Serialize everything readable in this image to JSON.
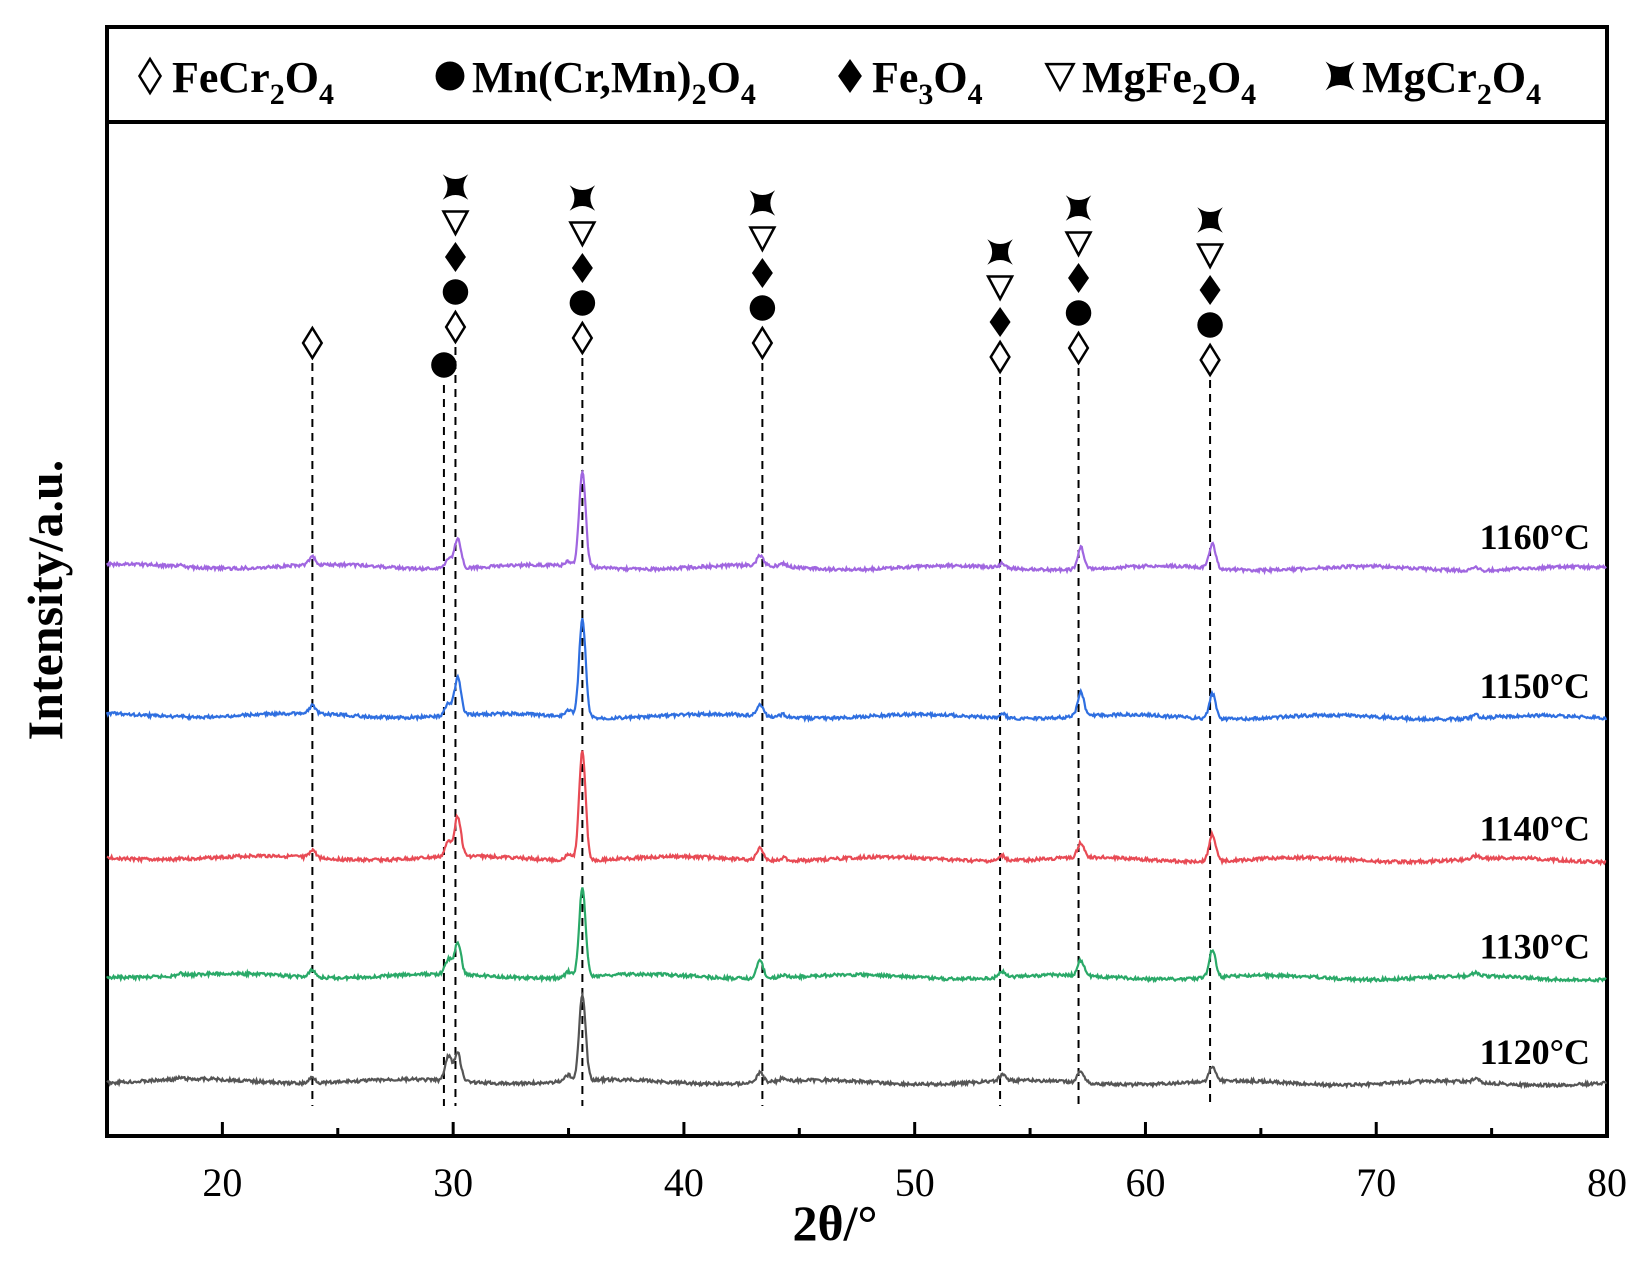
{
  "chart_data": {
    "type": "line",
    "xlabel": "2θ/°",
    "ylabel": "Intensity/a.u.",
    "xlim": [
      15,
      80
    ],
    "x_ticks": [
      20,
      30,
      40,
      50,
      60,
      70,
      80
    ],
    "legend_position": "top",
    "legend": [
      {
        "symbol": "open-diamond",
        "base": "FeCr",
        "sub1": "2",
        "mid": "O",
        "sub2": "4"
      },
      {
        "symbol": "filled-circle",
        "base": "Mn(Cr,Mn)",
        "sub1": "2",
        "mid": "O",
        "sub2": "4"
      },
      {
        "symbol": "filled-diamond",
        "base": "Fe",
        "sub1": "3",
        "mid": "O",
        "sub2": "4"
      },
      {
        "symbol": "open-triangle",
        "base": "MgFe",
        "sub1": "2",
        "mid": "O",
        "sub2": "4"
      },
      {
        "symbol": "bowtie",
        "base": "MgCr",
        "sub1": "2",
        "mid": "O",
        "sub2": "4"
      }
    ],
    "series": [
      {
        "name": "1160°C",
        "color": "#a066e0",
        "baseline": 0.24,
        "peaks": [
          [
            18.2,
            1.5
          ],
          [
            23.9,
            8
          ],
          [
            29.8,
            10
          ],
          [
            30.2,
            30
          ],
          [
            35.0,
            5
          ],
          [
            35.6,
            95
          ],
          [
            43.3,
            10
          ],
          [
            44.3,
            3
          ],
          [
            53.8,
            4
          ],
          [
            57.2,
            22
          ],
          [
            62.9,
            24
          ],
          [
            74.3,
            3
          ]
        ]
      },
      {
        "name": "1150°C",
        "color": "#2f6fe0",
        "baseline": 0.0,
        "peaks": [
          [
            18.2,
            1.5
          ],
          [
            23.9,
            8
          ],
          [
            29.8,
            12
          ],
          [
            30.2,
            38
          ],
          [
            35.0,
            7
          ],
          [
            35.6,
            98
          ],
          [
            43.3,
            12
          ],
          [
            44.3,
            3
          ],
          [
            53.8,
            5
          ],
          [
            57.2,
            24
          ],
          [
            62.9,
            25
          ],
          [
            74.3,
            3
          ]
        ]
      },
      {
        "name": "1140°C",
        "color": "#e84b55",
        "baseline": -0.23,
        "peaks": [
          [
            18.2,
            1.5
          ],
          [
            23.9,
            8
          ],
          [
            29.8,
            15
          ],
          [
            30.2,
            40
          ],
          [
            35.0,
            7
          ],
          [
            35.6,
            110
          ],
          [
            43.3,
            13
          ],
          [
            44.3,
            3
          ],
          [
            53.8,
            5
          ],
          [
            57.2,
            15
          ],
          [
            62.9,
            27
          ],
          [
            74.3,
            3
          ]
        ]
      },
      {
        "name": "1130°C",
        "color": "#2aa968",
        "baseline": -0.42,
        "peaks": [
          [
            18.2,
            2
          ],
          [
            23.9,
            7
          ],
          [
            29.8,
            15
          ],
          [
            30.2,
            32
          ],
          [
            35.0,
            6
          ],
          [
            35.6,
            88
          ],
          [
            43.3,
            18
          ],
          [
            44.3,
            3
          ],
          [
            53.8,
            6
          ],
          [
            57.2,
            15
          ],
          [
            62.9,
            28
          ],
          [
            74.3,
            3
          ]
        ]
      },
      {
        "name": "1120°C",
        "color": "#555555",
        "baseline": -0.59,
        "peaks": [
          [
            18.2,
            1.5
          ],
          [
            23.9,
            6
          ],
          [
            29.8,
            25
          ],
          [
            30.2,
            28
          ],
          [
            35.0,
            6
          ],
          [
            35.6,
            85
          ],
          [
            43.3,
            10
          ],
          [
            44.3,
            3
          ],
          [
            53.8,
            6
          ],
          [
            57.2,
            12
          ],
          [
            62.9,
            15
          ],
          [
            74.3,
            3
          ]
        ]
      }
    ],
    "peak_markers": [
      {
        "x": 23.9,
        "symbols": [
          "open-diamond"
        ]
      },
      {
        "x": 29.6,
        "symbols": [
          "filled-circle"
        ]
      },
      {
        "x": 30.1,
        "symbols": [
          "open-diamond",
          "filled-circle",
          "filled-diamond",
          "open-triangle",
          "bowtie"
        ]
      },
      {
        "x": 35.6,
        "symbols": [
          "open-diamond",
          "filled-circle",
          "filled-diamond",
          "open-triangle",
          "bowtie"
        ]
      },
      {
        "x": 43.4,
        "symbols": [
          "open-diamond",
          "filled-circle",
          "filled-diamond",
          "open-triangle",
          "bowtie"
        ]
      },
      {
        "x": 53.7,
        "symbols": [
          "open-diamond",
          "filled-diamond",
          "open-triangle",
          "bowtie"
        ]
      },
      {
        "x": 57.1,
        "symbols": [
          "open-diamond",
          "filled-circle",
          "filled-diamond",
          "open-triangle",
          "bowtie"
        ]
      },
      {
        "x": 62.8,
        "symbols": [
          "open-diamond",
          "filled-circle",
          "filled-diamond",
          "open-triangle",
          "bowtie"
        ]
      }
    ]
  }
}
